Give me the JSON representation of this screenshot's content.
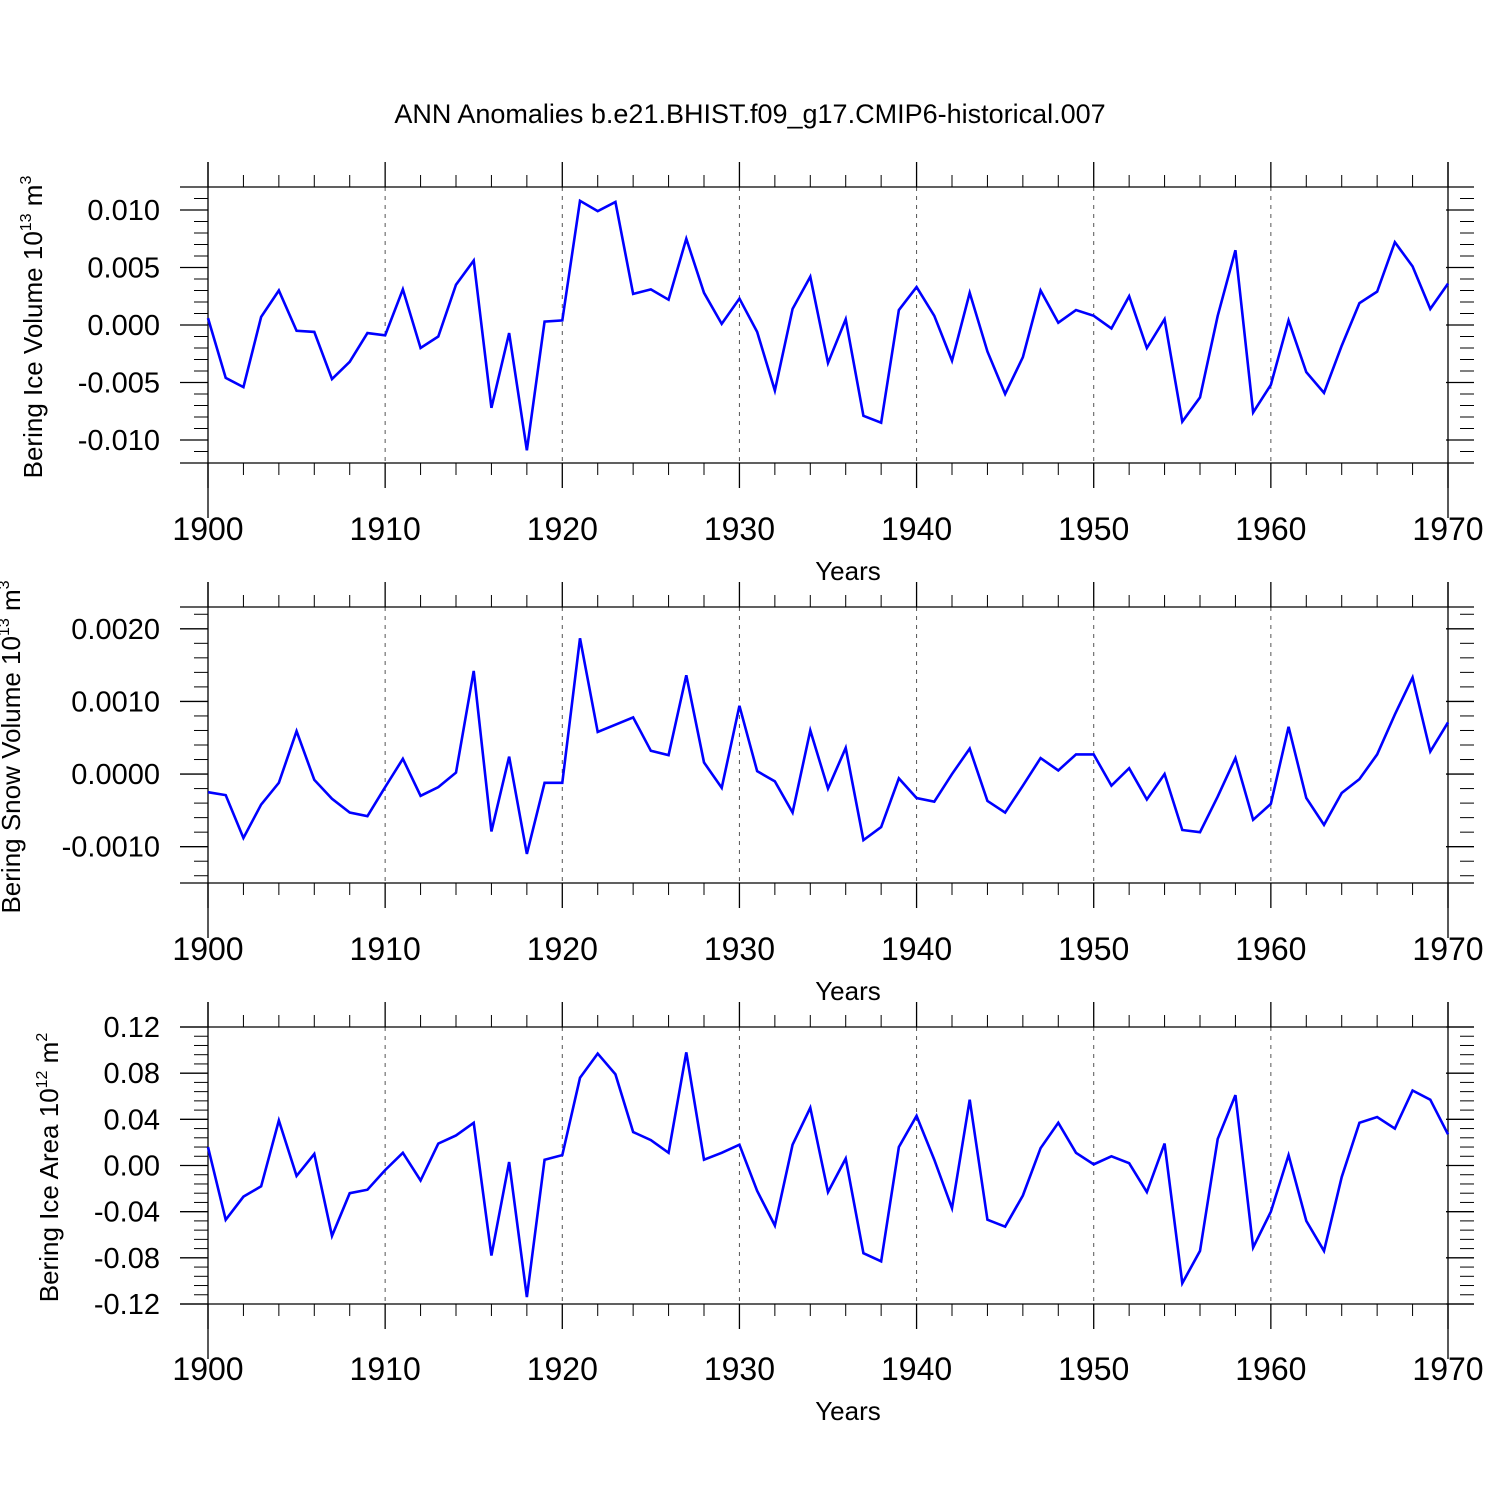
{
  "title": "ANN Anomalies b.e21.BHIST.f09_g17.CMIP6-historical.007",
  "line_color": "#0000ff",
  "chart_data": [
    {
      "type": "line",
      "ylabel": "Bering Ice Volume 10",
      "ylabel_exp": "13",
      "ylabel_unit": " m",
      "ylabel_unit_exp": "3",
      "xlabel": "Years",
      "xlim": [
        1900,
        1970
      ],
      "ylim": [
        -0.012,
        0.012
      ],
      "yticks": [
        -0.01,
        -0.005,
        0.0,
        0.005,
        0.01
      ],
      "ytick_labels": [
        "-0.010",
        "-0.005",
        "0.000",
        "0.005",
        "0.010"
      ],
      "yminor_step": 0.001,
      "xticks": [
        1900,
        1910,
        1920,
        1930,
        1940,
        1950,
        1960,
        1970
      ],
      "xtick_labels": [
        "1900",
        "1910",
        "1920",
        "1930",
        "1940",
        "1950",
        "1960",
        "1970"
      ],
      "start_year": 1900,
      "values": [
        0.0006,
        -0.0046,
        -0.0054,
        0.0007,
        0.003,
        -0.0005,
        -0.0006,
        -0.0047,
        -0.0032,
        -0.0007,
        -0.0009,
        0.0031,
        -0.002,
        -0.001,
        0.0035,
        0.0056,
        -0.0072,
        -0.0007,
        -0.0109,
        0.0003,
        0.0004,
        0.0108,
        0.0099,
        0.0107,
        0.0027,
        0.0031,
        0.0022,
        0.0075,
        0.0028,
        0.0001,
        0.0023,
        -0.0006,
        -0.0057,
        0.0014,
        0.0042,
        -0.0033,
        0.0005,
        -0.0079,
        -0.0085,
        0.0013,
        0.0033,
        0.0008,
        -0.0031,
        0.0028,
        -0.0023,
        -0.006,
        -0.0028,
        0.003,
        0.0002,
        0.0013,
        0.0008,
        -0.0003,
        0.0025,
        -0.002,
        0.0005,
        -0.0084,
        -0.0063,
        0.0008,
        0.0065,
        -0.0076,
        -0.0052,
        0.0004,
        -0.0041,
        -0.0059,
        -0.0018,
        0.0019,
        0.0029,
        0.0072,
        0.0051,
        0.0014,
        0.0036
      ]
    },
    {
      "type": "line",
      "ylabel": "Bering Snow Volume 10",
      "ylabel_exp": "13",
      "ylabel_unit": " m",
      "ylabel_unit_exp": "3",
      "xlabel": "Years",
      "xlim": [
        1900,
        1970
      ],
      "ylim": [
        -0.0015,
        0.0023
      ],
      "yticks": [
        -0.001,
        0.0,
        0.001,
        0.002
      ],
      "ytick_labels": [
        "-0.0010",
        "0.0000",
        "0.0010",
        "0.0020"
      ],
      "yminor_step": 0.0002,
      "xticks": [
        1900,
        1910,
        1920,
        1930,
        1940,
        1950,
        1960,
        1970
      ],
      "xtick_labels": [
        "1900",
        "1910",
        "1920",
        "1930",
        "1940",
        "1950",
        "1960",
        "1970"
      ],
      "start_year": 1900,
      "values": [
        -0.00025,
        -0.00029,
        -0.00088,
        -0.00042,
        -0.00012,
        0.00059,
        -8e-05,
        -0.00034,
        -0.00053,
        -0.00058,
        -0.00018,
        0.00021,
        -0.0003,
        -0.00018,
        2e-05,
        0.00142,
        -0.00079,
        0.00024,
        -0.0011,
        -0.00012,
        -0.00012,
        0.00187,
        0.00058,
        0.00068,
        0.00078,
        0.00032,
        0.00026,
        0.00136,
        0.00016,
        -0.00019,
        0.00094,
        4e-05,
        -0.0001,
        -0.00053,
        0.0006,
        -0.0002,
        0.00036,
        -0.00091,
        -0.00073,
        -6e-05,
        -0.00033,
        -0.00038,
        0.0,
        0.00035,
        -0.00037,
        -0.00053,
        -0.00016,
        0.00022,
        5e-05,
        0.00027,
        0.00027,
        -0.00016,
        8e-05,
        -0.00035,
        0.0,
        -0.00077,
        -0.0008,
        -0.00031,
        0.00022,
        -0.00063,
        -0.00041,
        0.00065,
        -0.00033,
        -0.0007,
        -0.00026,
        -7e-05,
        0.00027,
        0.00082,
        0.00133,
        0.00031,
        0.00071
      ]
    },
    {
      "type": "line",
      "ylabel": "Bering Ice Area 10",
      "ylabel_exp": "12",
      "ylabel_unit": " m",
      "ylabel_unit_exp": "2",
      "xlabel": "Years",
      "xlim": [
        1900,
        1970
      ],
      "ylim": [
        -0.12,
        0.12
      ],
      "yticks": [
        -0.12,
        -0.08,
        -0.04,
        0.0,
        0.04,
        0.08,
        0.12
      ],
      "ytick_labels": [
        "-0.12",
        "-0.08",
        "-0.04",
        "0.00",
        "0.04",
        "0.08",
        "0.12"
      ],
      "yminor_step": 0.008,
      "xticks": [
        1900,
        1910,
        1920,
        1930,
        1940,
        1950,
        1960,
        1970
      ],
      "xtick_labels": [
        "1900",
        "1910",
        "1920",
        "1930",
        "1940",
        "1950",
        "1960",
        "1970"
      ],
      "start_year": 1900,
      "values": [
        0.016,
        -0.047,
        -0.027,
        -0.018,
        0.039,
        -0.009,
        0.01,
        -0.061,
        -0.024,
        -0.021,
        -0.004,
        0.011,
        -0.013,
        0.019,
        0.026,
        0.037,
        -0.078,
        0.003,
        -0.114,
        0.005,
        0.009,
        0.076,
        0.097,
        0.079,
        0.029,
        0.022,
        0.011,
        0.098,
        0.005,
        0.011,
        0.018,
        -0.022,
        -0.052,
        0.018,
        0.05,
        -0.023,
        0.006,
        -0.076,
        -0.083,
        0.016,
        0.043,
        0.005,
        -0.037,
        0.057,
        -0.047,
        -0.053,
        -0.026,
        0.015,
        0.037,
        0.011,
        0.001,
        0.008,
        0.002,
        -0.023,
        0.019,
        -0.102,
        -0.074,
        0.023,
        0.061,
        -0.071,
        -0.04,
        0.009,
        -0.048,
        -0.074,
        -0.01,
        0.037,
        0.042,
        0.032,
        0.065,
        0.057,
        0.027
      ]
    }
  ]
}
